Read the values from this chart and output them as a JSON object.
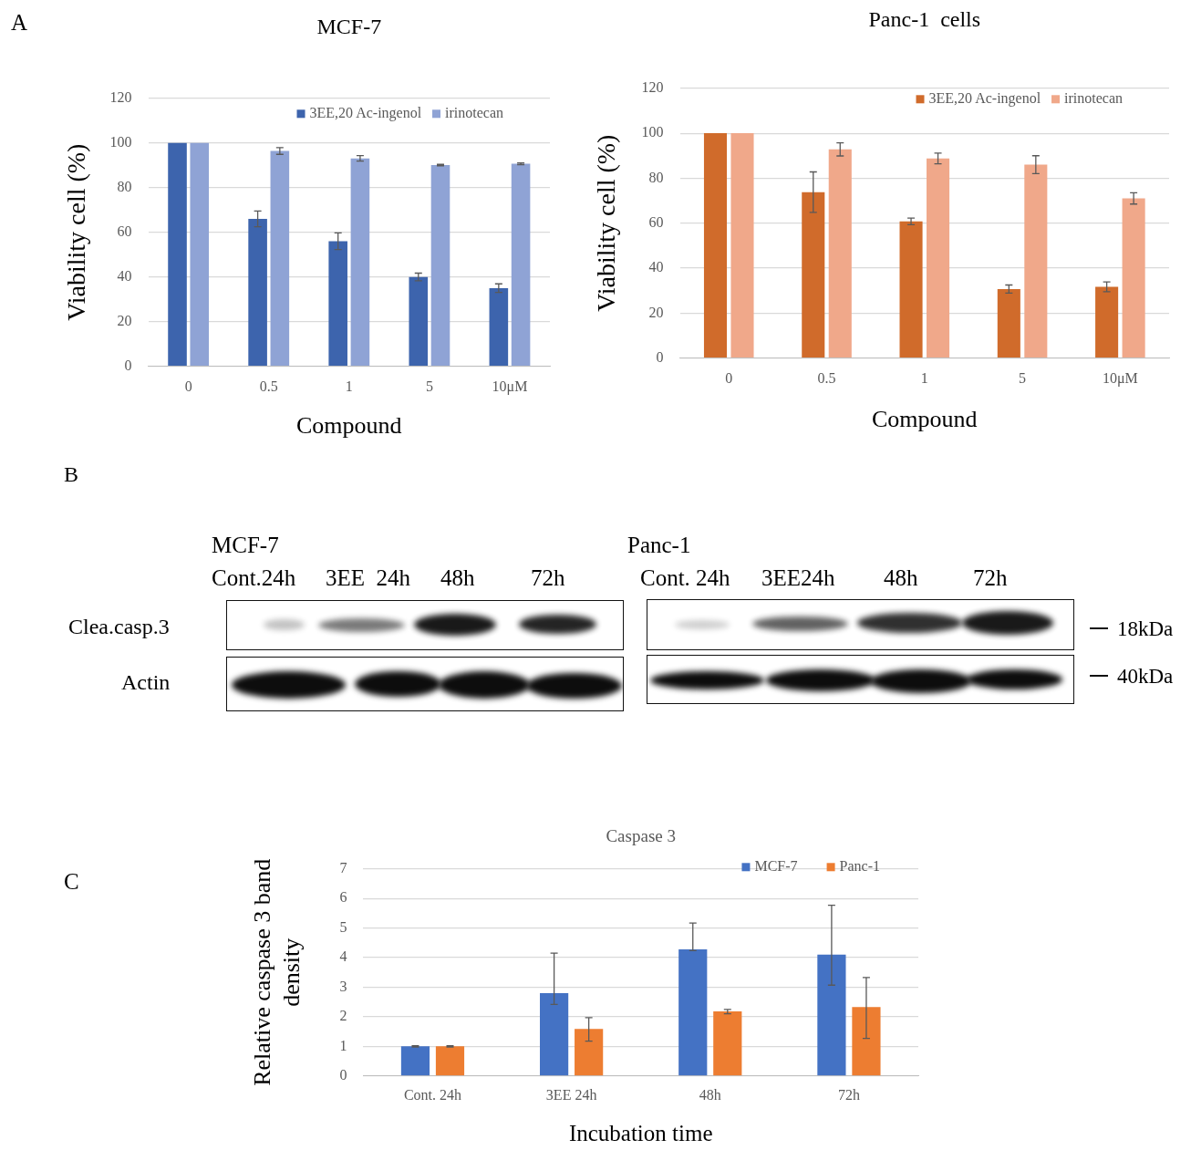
{
  "chart_data": [
    {
      "type": "bar",
      "title": "MCF-7",
      "xlabel": "Compound",
      "ylabel": "Viability cell (%)",
      "annotations": [
        "A"
      ],
      "categories": [
        "0",
        "0.5",
        "1",
        "5",
        "10μM"
      ],
      "series": [
        {
          "name": "3EE,20 Ac-ingenol",
          "color": "#3d64ad",
          "values": [
            100,
            66,
            56,
            40,
            35
          ],
          "errors": [
            null,
            3.5,
            3.7,
            1.7,
            1.9
          ]
        },
        {
          "name": "irinotecan",
          "color": "#8fa3d5",
          "values": [
            100,
            96.4,
            93.1,
            90.1,
            90.7
          ],
          "errors": [
            null,
            1.5,
            1.2,
            0.3,
            0.4
          ]
        }
      ],
      "ylim": [
        0,
        120
      ],
      "yticks": [
        0,
        20,
        40,
        60,
        80,
        100,
        120
      ],
      "grid": "y",
      "legend": "top right"
    },
    {
      "type": "bar",
      "title": "Panc-1  cells",
      "xlabel": "Compound",
      "ylabel": "Viability cell (%)",
      "categories": [
        "0",
        "0.5",
        "1",
        "5",
        "10μM"
      ],
      "series": [
        {
          "name": "3EE,20 Ac-ingenol",
          "color": "#d06b2b",
          "values": [
            100,
            73.8,
            60.8,
            30.7,
            31.7
          ],
          "errors": [
            null,
            9,
            1.5,
            1.8,
            2.2
          ]
        },
        {
          "name": "irinotecan",
          "color": "#f0a88a",
          "values": [
            100,
            92.8,
            88.8,
            86,
            71
          ],
          "errors": [
            null,
            2.9,
            2.4,
            4,
            2.5
          ]
        }
      ],
      "ylim": [
        0,
        120
      ],
      "yticks": [
        0,
        20,
        40,
        60,
        80,
        100,
        120
      ],
      "grid": "y",
      "legend": "top right"
    },
    {
      "type": "other",
      "annotations": [
        "B",
        "MCF-7",
        "Cont.24h",
        "3EE  24h",
        "48h",
        "72h",
        "Panc-1",
        "Cont. 24h",
        "3EE24h",
        "48h",
        "72h",
        "Clea.casp.3",
        "Actin",
        "18kDa",
        "40kDa"
      ]
    },
    {
      "type": "bar",
      "title": "Caspase 3",
      "xlabel": "Incubation time",
      "ylabel": "Relative caspase 3 band density",
      "annotations": [
        "C"
      ],
      "categories": [
        "Cont. 24h",
        "3EE 24h",
        "48h",
        "72h"
      ],
      "series": [
        {
          "name": "MCF-7",
          "color": "#4472c4",
          "values": [
            1,
            2.8,
            4.28,
            4.1
          ],
          "errors": [
            0.02,
            [
              2.42,
              4.15
            ],
            [
              4.24,
              5.17
            ],
            [
              3.07,
              5.77
            ]
          ]
        },
        {
          "name": "Panc-1",
          "color": "#ed7d31",
          "values": [
            1,
            1.59,
            2.18,
            2.33
          ],
          "errors": [
            0.02,
            [
              1.18,
              1.97
            ],
            [
              2.1,
              2.25
            ],
            [
              1.27,
              3.33
            ]
          ]
        }
      ],
      "ylim": [
        0,
        7
      ],
      "yticks": [
        0,
        1,
        2,
        3,
        4,
        5,
        6,
        7
      ],
      "grid": "y",
      "legend": "top right"
    }
  ]
}
